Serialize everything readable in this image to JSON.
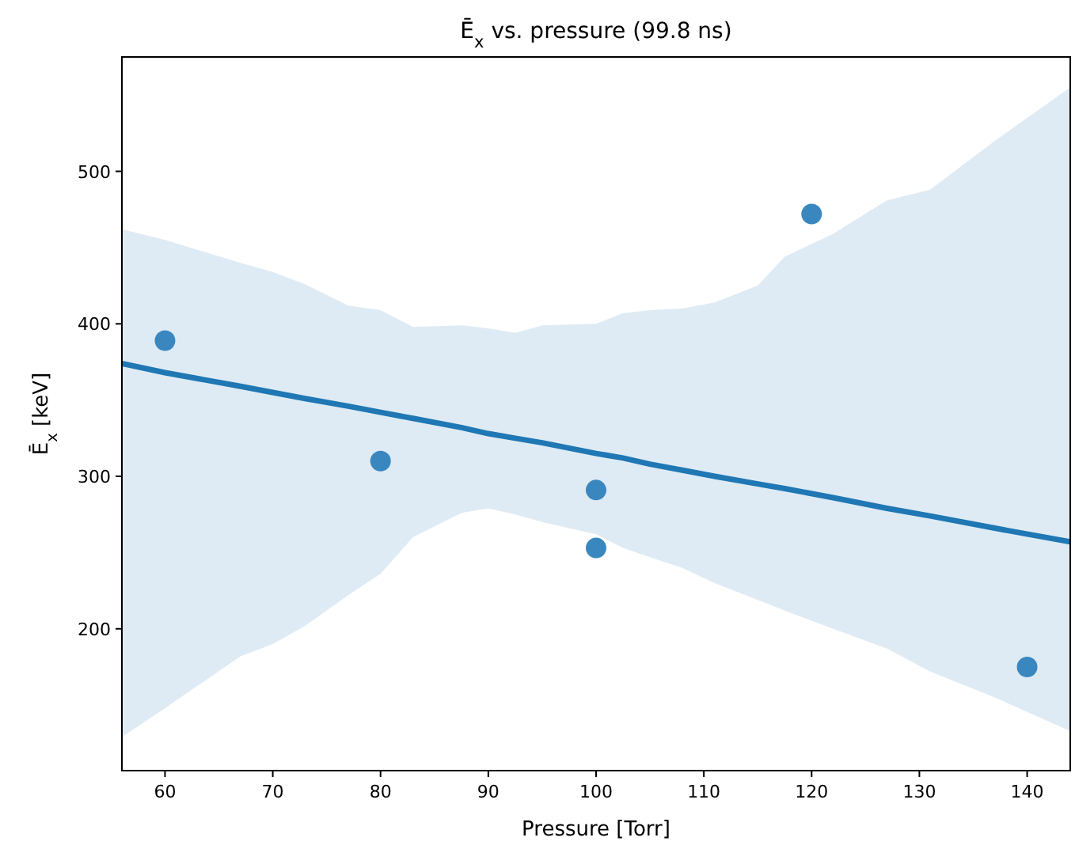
{
  "chart_data": {
    "type": "scatter",
    "title": "Ē$_{x}$ vs. pressure (99.8 ns)",
    "xlabel": "Pressure [Torr]",
    "ylabel": "Ē$_{x}$ [keV]",
    "x": [
      60,
      80,
      100,
      100,
      120,
      140
    ],
    "series": [
      {
        "color": "#3a87c0",
        "values": [
          389,
          310,
          291,
          253,
          472,
          175
        ],
        "marker": "circle"
      },
      {
        "type": "line",
        "color": "#1f77b4",
        "x": [
          56,
          60,
          67,
          70,
          73,
          77,
          80,
          83,
          87.5,
          90,
          92.5,
          95,
          100,
          102.5,
          105,
          108,
          111,
          115,
          117.5,
          122,
          127,
          131,
          137,
          144
        ],
        "values": [
          374,
          368,
          359,
          355,
          351,
          346,
          342,
          338,
          332,
          328,
          325,
          322,
          315,
          312,
          308,
          304,
          300,
          295,
          292,
          286,
          279,
          274,
          266,
          257
        ],
        "lower": [
          129,
          148,
          182,
          190,
          202,
          222,
          236,
          260,
          276,
          279,
          275,
          270,
          262,
          253,
          247,
          240,
          230,
          219,
          212,
          200,
          187,
          172,
          155,
          133
        ],
        "upper": [
          462,
          455,
          440,
          434,
          426,
          412,
          409,
          398,
          399,
          397,
          394,
          399,
          400,
          407,
          409,
          410,
          414,
          425,
          444,
          459,
          481,
          488,
          520,
          555
        ],
        "line_style": "solid"
      }
    ],
    "xlim": [
      56,
      144
    ],
    "ylim": [
      107,
      575
    ],
    "xticks": [
      60,
      70,
      80,
      90,
      100,
      110,
      120,
      130,
      140
    ],
    "yticks": [
      200,
      300,
      400,
      500
    ],
    "grid": false
  }
}
